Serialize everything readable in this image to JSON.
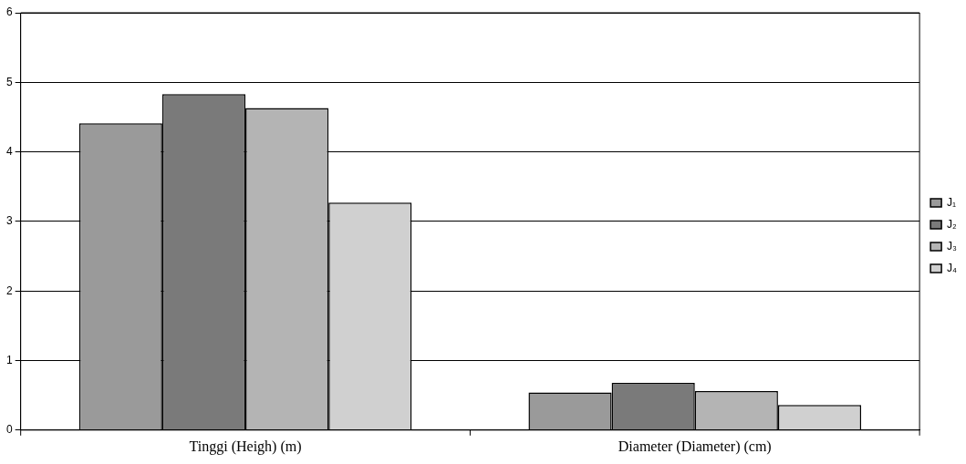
{
  "chart_data": {
    "type": "bar",
    "categories": [
      "Tinggi (Heigh) (m)",
      "Diameter (Diameter) (cm)"
    ],
    "series": [
      {
        "name": "J₁",
        "color": "#9a9a9a",
        "values": [
          4.41,
          0.54
        ]
      },
      {
        "name": "J₂",
        "color": "#7a7a7a",
        "values": [
          4.83,
          0.68
        ]
      },
      {
        "name": "J₃",
        "color": "#b4b4b4",
        "values": [
          4.63,
          0.56
        ]
      },
      {
        "name": "J₄",
        "color": "#d0d0d0",
        "values": [
          3.27,
          0.36
        ]
      }
    ],
    "ylim": [
      0,
      6
    ],
    "yticks": [
      0,
      1,
      2,
      3,
      4,
      5,
      6
    ],
    "grid": "y",
    "legend": "right"
  }
}
